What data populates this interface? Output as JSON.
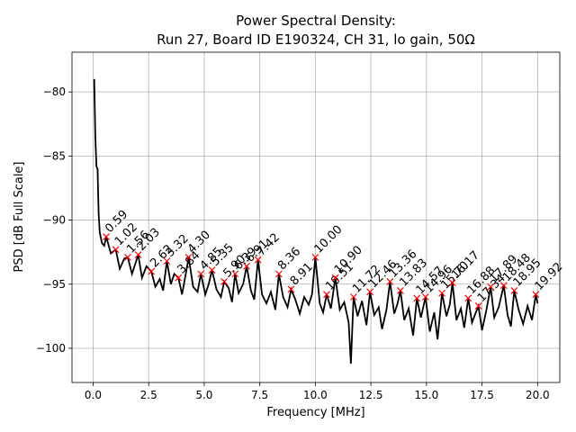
{
  "chart_data": {
    "type": "line",
    "title": "Power Spectral Density:",
    "subtitle": "Run 27, Board ID E190324, CH 31, lo gain, 50Ω",
    "xlabel": "Frequency [MHz]",
    "ylabel": "PSD [dB Full Scale]",
    "xlim": [
      -0.95,
      21.0
    ],
    "ylim": [
      -102.67,
      -76.9
    ],
    "xticks": [
      {
        "value": 0,
        "label": "0.0"
      },
      2.5,
      {
        "value": 5,
        "label": "5.0"
      },
      7.5,
      {
        "value": 10,
        "label": "10.0"
      },
      12.5,
      {
        "value": 15,
        "label": "15.0"
      },
      17.5,
      {
        "value": 20,
        "label": "20.0"
      }
    ],
    "yticks": [
      {
        "value": -100,
        "label": "−100"
      },
      {
        "value": -95,
        "label": "−95"
      },
      {
        "value": -90,
        "label": "−90"
      },
      {
        "value": -85,
        "label": "−85"
      },
      {
        "value": -80,
        "label": "−80"
      }
    ],
    "grid": true,
    "series": [
      {
        "color": "#000000",
        "x": [
          0.05,
          0.1,
          0.15,
          0.2,
          0.25,
          0.3,
          0.4,
          0.5,
          0.59,
          0.8,
          1.02,
          1.2,
          1.4,
          1.56,
          1.75,
          1.9,
          2.03,
          2.2,
          2.4,
          2.62,
          2.8,
          3.0,
          3.15,
          3.32,
          3.5,
          3.65,
          3.84,
          4.0,
          4.15,
          4.3,
          4.5,
          4.7,
          4.85,
          5.05,
          5.2,
          5.35,
          5.55,
          5.75,
          5.9,
          6.1,
          6.25,
          6.39,
          6.55,
          6.75,
          6.91,
          7.1,
          7.25,
          7.42,
          7.6,
          7.8,
          8.0,
          8.2,
          8.36,
          8.55,
          8.75,
          8.91,
          9.1,
          9.3,
          9.5,
          9.7,
          9.85,
          10.0,
          10.2,
          10.35,
          10.51,
          10.7,
          10.9,
          11.1,
          11.3,
          11.5,
          11.6,
          11.72,
          11.9,
          12.1,
          12.3,
          12.46,
          12.65,
          12.85,
          13.0,
          13.2,
          13.36,
          13.55,
          13.7,
          13.83,
          14.0,
          14.2,
          14.4,
          14.57,
          14.75,
          14.96,
          15.15,
          15.35,
          15.5,
          15.7,
          15.9,
          16.05,
          16.17,
          16.35,
          16.55,
          16.7,
          16.88,
          17.05,
          17.2,
          17.34,
          17.5,
          17.7,
          17.89,
          18.05,
          18.25,
          18.48,
          18.65,
          18.8,
          18.95,
          19.15,
          19.35,
          19.55,
          19.75,
          19.92,
          20.0
        ],
        "values": [
          -79.0,
          -83.5,
          -85.8,
          -86.0,
          -89.5,
          -91.0,
          -91.8,
          -92.0,
          -91.3,
          -92.6,
          -92.3,
          -93.8,
          -93.0,
          -92.9,
          -94.2,
          -93.4,
          -92.7,
          -94.5,
          -93.6,
          -94.0,
          -95.2,
          -94.6,
          -95.5,
          -93.2,
          -95.0,
          -94.2,
          -94.5,
          -95.8,
          -94.4,
          -92.9,
          -95.2,
          -95.6,
          -94.2,
          -95.8,
          -95.0,
          -93.9,
          -95.4,
          -96.0,
          -94.8,
          -95.3,
          -96.4,
          -94.2,
          -95.7,
          -95.0,
          -93.6,
          -95.5,
          -96.2,
          -93.1,
          -95.8,
          -96.5,
          -95.6,
          -97.0,
          -94.2,
          -96.0,
          -96.8,
          -95.4,
          -96.2,
          -97.3,
          -96.0,
          -96.6,
          -95.8,
          -92.9,
          -96.5,
          -97.2,
          -95.8,
          -96.9,
          -94.5,
          -97.0,
          -96.4,
          -98.0,
          -101.2,
          -96.0,
          -97.5,
          -96.3,
          -98.2,
          -95.6,
          -97.4,
          -96.8,
          -98.5,
          -97.0,
          -94.8,
          -97.3,
          -96.5,
          -95.5,
          -97.8,
          -96.9,
          -99.0,
          -96.1,
          -97.6,
          -96.0,
          -98.7,
          -97.2,
          -99.3,
          -95.7,
          -97.5,
          -96.6,
          -94.9,
          -97.8,
          -96.9,
          -98.4,
          -96.1,
          -98.0,
          -97.3,
          -96.7,
          -98.6,
          -97.0,
          -95.2,
          -97.6,
          -96.8,
          -95.1,
          -97.4,
          -98.3,
          -95.5,
          -97.0,
          -98.1,
          -96.7,
          -97.8,
          -95.8,
          -96.5
        ]
      }
    ],
    "peaks": {
      "color": "#ff0000",
      "x": [
        0.59,
        1.02,
        1.56,
        2.03,
        2.62,
        3.32,
        3.84,
        4.3,
        4.85,
        5.35,
        5.9,
        6.39,
        6.91,
        7.42,
        8.36,
        8.91,
        10.0,
        10.51,
        10.9,
        11.72,
        12.46,
        13.36,
        13.83,
        14.57,
        14.96,
        15.7,
        16.17,
        16.88,
        17.34,
        17.89,
        18.48,
        18.95,
        19.92
      ],
      "values": [
        -91.3,
        -92.3,
        -92.9,
        -92.7,
        -94.0,
        -93.2,
        -94.5,
        -92.9,
        -94.2,
        -93.9,
        -94.8,
        -94.2,
        -93.6,
        -93.1,
        -94.2,
        -95.4,
        -92.9,
        -95.8,
        -94.5,
        -96.0,
        -95.6,
        -94.8,
        -95.5,
        -96.1,
        -96.0,
        -95.7,
        -94.9,
        -96.1,
        -96.7,
        -95.2,
        -95.1,
        -95.5,
        -95.8
      ],
      "value_labels": [
        "0.59",
        "1.02",
        "1.56",
        "2.03",
        "2.62",
        "3.32",
        "3.84",
        "4.30",
        "4.85",
        "5.35",
        "5.90",
        "6.39",
        "6.91",
        "7.42",
        "8.36",
        "8.91",
        "10.00",
        "10.51",
        "10.90",
        "11.72",
        "12.46",
        "13.36",
        "13.83",
        "14.57",
        "14.96",
        "15.70",
        "16.17",
        "16.88",
        "17.34",
        "17.89",
        "18.48",
        "18.95",
        "19.92"
      ]
    }
  }
}
